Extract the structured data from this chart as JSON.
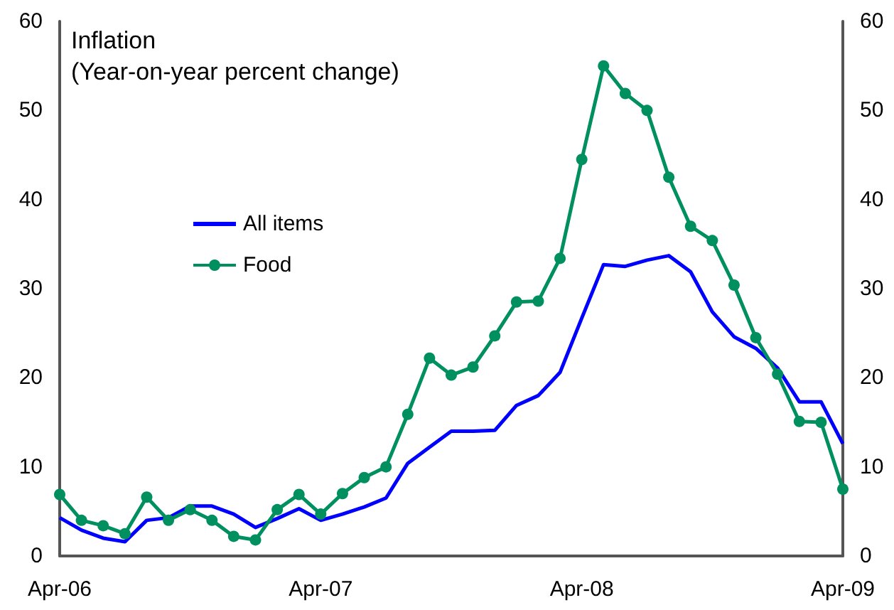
{
  "chart_data": {
    "type": "line",
    "title": "Inflation",
    "subtitle": "(Year-on-year percent change)",
    "categories": [
      "Apr-06",
      null,
      null,
      null,
      null,
      null,
      null,
      null,
      null,
      null,
      null,
      null,
      "Apr-07",
      null,
      null,
      null,
      null,
      null,
      null,
      null,
      null,
      null,
      null,
      null,
      "Apr-08",
      null,
      null,
      null,
      null,
      null,
      null,
      null,
      null,
      null,
      null,
      null,
      "Apr-09"
    ],
    "series": [
      {
        "name": "All items",
        "color": "#0000ff",
        "marker": "none",
        "values": [
          4.3,
          2.9,
          2.0,
          1.6,
          4.0,
          4.3,
          5.6,
          5.6,
          4.7,
          3.2,
          4.2,
          5.3,
          4.0,
          4.7,
          5.5,
          6.5,
          10.4,
          12.2,
          14.0,
          14.0,
          14.1,
          16.9,
          18.0,
          20.6,
          26.7,
          32.7,
          32.5,
          33.2,
          33.7,
          31.9,
          27.4,
          24.6,
          23.3,
          21.1,
          17.3,
          17.3,
          12.6
        ]
      },
      {
        "name": "Food",
        "color": "#009060",
        "marker": "circle",
        "values": [
          6.9,
          4.0,
          3.4,
          2.5,
          6.6,
          4.0,
          5.2,
          4.0,
          2.2,
          1.8,
          5.2,
          6.9,
          4.7,
          7.0,
          8.8,
          10.0,
          15.9,
          22.2,
          20.3,
          21.2,
          24.7,
          28.5,
          28.6,
          33.4,
          44.5,
          55.0,
          51.9,
          50.0,
          42.5,
          37.0,
          35.4,
          30.4,
          24.5,
          20.4,
          15.1,
          15.0,
          7.5
        ]
      }
    ],
    "ylim": [
      0,
      60
    ],
    "yticks": [
      0,
      10,
      20,
      30,
      40,
      50,
      60
    ],
    "y2lim": [
      0,
      60
    ],
    "y2ticks": [
      0,
      10,
      20,
      30,
      40,
      50,
      60
    ],
    "grid": false,
    "legend": "left"
  }
}
